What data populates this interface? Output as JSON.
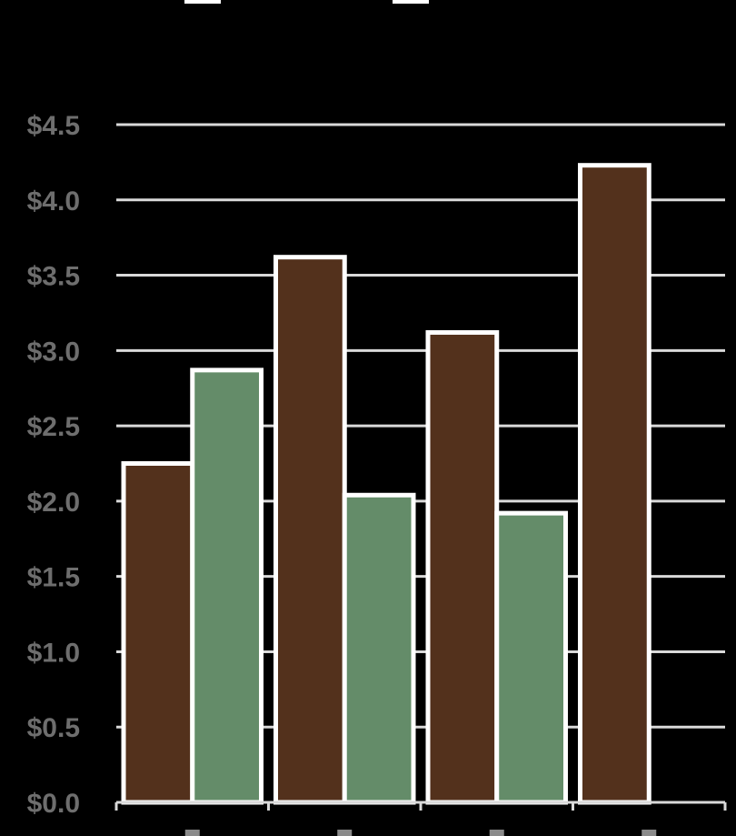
{
  "chart_data": {
    "type": "bar",
    "title": "",
    "xlabel": "",
    "ylabel": "",
    "ylim": [
      0,
      4.5
    ],
    "yticks": [
      "$0.0",
      "$0.5",
      "$1.0",
      "$1.5",
      "$2.0",
      "$2.5",
      "$3.0",
      "$3.5",
      "$4.0",
      "$4.5"
    ],
    "grid": true,
    "categories": [
      "",
      "",
      "",
      ""
    ],
    "series": [
      {
        "values": [
          2.25,
          3.62,
          3.12,
          4.23
        ],
        "color": "#53311c"
      },
      {
        "values": [
          2.87,
          2.04,
          1.92,
          null
        ],
        "color": "#648c69"
      }
    ],
    "legend_position": "top"
  }
}
